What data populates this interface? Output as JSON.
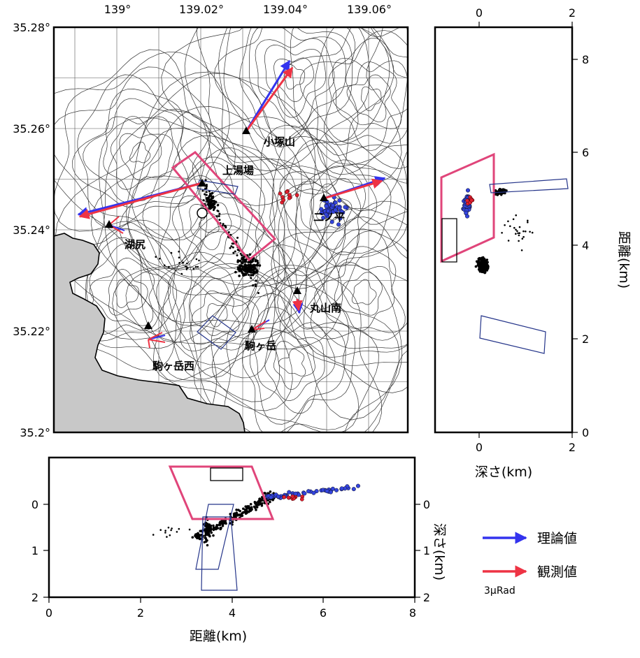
{
  "map": {
    "lon_ticks": [
      "139°",
      "139.02°",
      "139.04°",
      "139.06°"
    ],
    "lat_ticks": [
      "35.28°",
      "35.26°",
      "35.24°",
      "35.22°",
      "35.2°"
    ],
    "stations": [
      {
        "name": "小塚山"
      },
      {
        "name": "上湯場"
      },
      {
        "name": "二ノ平"
      },
      {
        "name": "湖尻"
      },
      {
        "name": "丸山南"
      },
      {
        "name": "駒ヶ岳"
      },
      {
        "name": "駒ヶ岳西"
      }
    ]
  },
  "right_panel": {
    "top_ticks": [
      "0",
      "2"
    ],
    "bottom_ticks": [
      "0",
      "2"
    ],
    "right_ticks": [
      "8",
      "6",
      "4",
      "2",
      "0"
    ],
    "xlabel": "深さ(km)",
    "ylabel": "距離(km)"
  },
  "bottom_panel": {
    "x_ticks": [
      "0",
      "2",
      "4",
      "6",
      "8"
    ],
    "left_ticks": [
      "0",
      "1",
      "2"
    ],
    "right_ticks": [
      "0",
      "1",
      "2"
    ],
    "xlabel": "距離(km)",
    "ylabel": "深さ(km)"
  },
  "legend": {
    "theory": "理論値",
    "observed": "観測値",
    "scale": "3μRad",
    "theory_color": "#3333ee",
    "observed_color": "#ee3344"
  }
}
